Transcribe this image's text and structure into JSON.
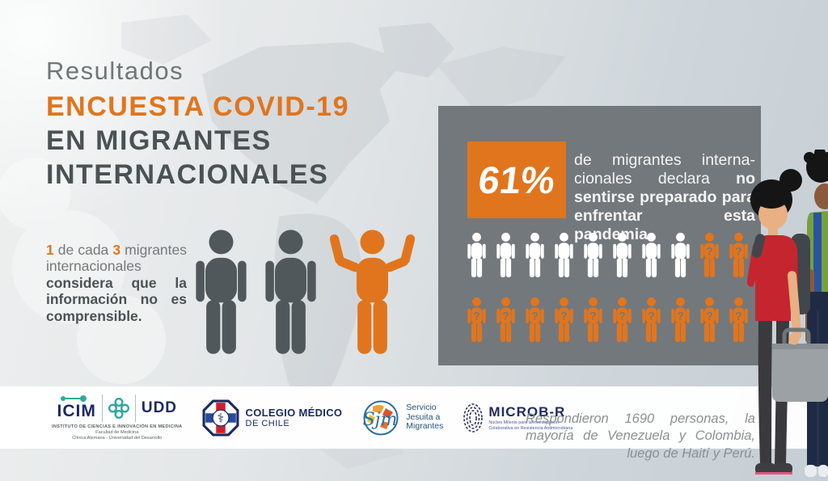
{
  "colors": {
    "orange": "#e0751e",
    "dark_text": "#4a5254",
    "mid_gray": "#75797b",
    "panel_gray": "#73787c",
    "figure_gray": "#51585c",
    "white": "#ffffff",
    "navy": "#1b2a63",
    "teal": "#35a79c"
  },
  "header": {
    "kicker": "Resultados",
    "title_line1": "ENCUESTA COVID-19",
    "title_line2": "EN MIGRANTES",
    "title_line3": "INTERNACIONALES"
  },
  "left_stat": {
    "num1": "1",
    "mid": " de cada ",
    "num2": "3",
    "regular": " migrantes in­ternacionales ",
    "bold": "considera que la información no es compren­sible."
  },
  "panel": {
    "percent": "61%",
    "desc_regular": "de migrantes interna­cionales declara ",
    "desc_bold": "no sentirse preparado para enfrentar esta pandemia."
  },
  "trio": {
    "figures": [
      "gray-standing",
      "gray-standing",
      "orange-shrug"
    ]
  },
  "pictogram": {
    "question_mark": "?",
    "rows": [
      [
        "white",
        "white",
        "white",
        "white",
        "white",
        "white",
        "white",
        "white",
        "orange",
        "orange"
      ],
      [
        "orange",
        "orange",
        "orange",
        "orange",
        "orange",
        "orange",
        "orange",
        "orange",
        "orange",
        "orange"
      ]
    ]
  },
  "footer": {
    "icim": {
      "name": "ICIM",
      "udd": "UDD",
      "line1": "INSTITUTO DE CIENCIAS E INNOVACIÓN EN MEDICINA",
      "line2": "Facultad de Medicina",
      "line3": "Clínica Alemana - Universidad del Desarrollo"
    },
    "colmed": {
      "line1": "COLEGIO MÉDICO",
      "line2": "DE CHILE",
      "symbol": "⚕"
    },
    "sjm": {
      "script": "Sjm",
      "line1": "Servicio",
      "line2": "Jesuita a",
      "line3": "Migrantes"
    },
    "microbr": {
      "name": "MICROB-R",
      "sub1": "Núcleo Milenio para la Investigación",
      "sub2": "Colaborativa en Resistencia Antimicrobiana"
    },
    "note": "Respondieron 1690 personas, la mayoría de Venezuela y Colombia, luego de Haití y Perú."
  }
}
